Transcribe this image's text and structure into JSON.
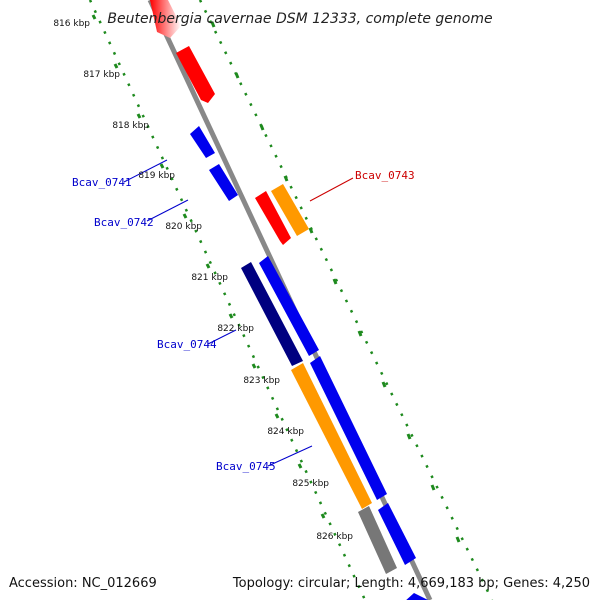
{
  "title": "Beutenbergia cavernae DSM 12333, complete genome",
  "footer": {
    "accession": "Accession: NC_012669",
    "summary": "Topology: circular; Length: 4,669,183 bp; Genes: 4,250"
  },
  "colors": {
    "backbone": "#888888",
    "ruler_dots": "#1e8a1e",
    "red_gene": "#ff0000",
    "blue_gene": "#0000ee",
    "navy_gene": "#000080",
    "orange_gene": "#ff9900",
    "gray_gene": "#777777",
    "label_blue": "#0000cc",
    "label_red": "#cc0000"
  },
  "ticks": [
    {
      "label": "816 kbp"
    },
    {
      "label": "817 kbp"
    },
    {
      "label": "818 kbp"
    },
    {
      "label": "819 kbp"
    },
    {
      "label": "820 kbp"
    },
    {
      "label": "821 kbp"
    },
    {
      "label": "822 kbp"
    },
    {
      "label": "823 kbp"
    },
    {
      "label": "824 kbp"
    },
    {
      "label": "825 kbp"
    },
    {
      "label": "826 kbp"
    }
  ],
  "gene_labels": [
    {
      "name": "Bcav_0741",
      "color": "label_blue"
    },
    {
      "name": "Bcav_0742",
      "color": "label_blue"
    },
    {
      "name": "Bcav_0743",
      "color": "label_red"
    },
    {
      "name": "Bcav_0744",
      "color": "label_blue"
    },
    {
      "name": "Bcav_0745",
      "color": "label_blue"
    }
  ]
}
